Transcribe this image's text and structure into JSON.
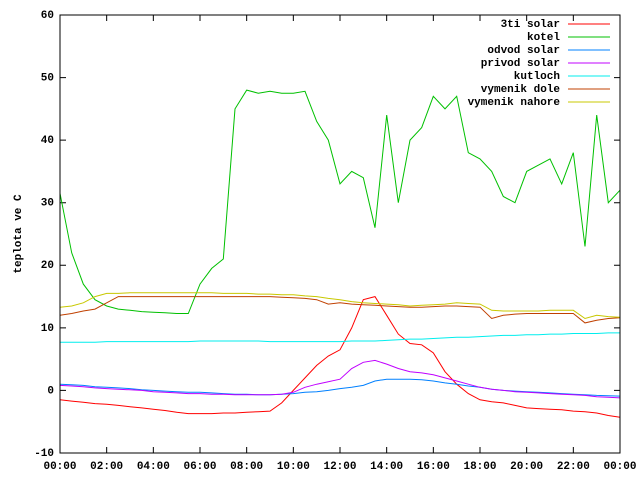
{
  "chart_data": {
    "type": "line",
    "y_label": "teplota ve C",
    "x": [
      0,
      0.5,
      1,
      1.5,
      2,
      2.5,
      3,
      3.5,
      4,
      4.5,
      5,
      5.5,
      6,
      6.5,
      7,
      7.5,
      8,
      8.5,
      9,
      9.5,
      10,
      10.5,
      11,
      11.5,
      12,
      12.5,
      13,
      13.5,
      14,
      14.5,
      15,
      15.5,
      16,
      16.5,
      17,
      17.5,
      18,
      18.5,
      19,
      19.5,
      20,
      20.5,
      21,
      21.5,
      22,
      22.5,
      23,
      23.5,
      24
    ],
    "xlim": [
      0,
      24
    ],
    "xticks": [
      {
        "value": 0,
        "label": "00:00"
      },
      {
        "value": 2,
        "label": "02:00"
      },
      {
        "value": 4,
        "label": "04:00"
      },
      {
        "value": 6,
        "label": "06:00"
      },
      {
        "value": 8,
        "label": "08:00"
      },
      {
        "value": 10,
        "label": "10:00"
      },
      {
        "value": 12,
        "label": "12:00"
      },
      {
        "value": 14,
        "label": "14:00"
      },
      {
        "value": 16,
        "label": "16:00"
      },
      {
        "value": 18,
        "label": "18:00"
      },
      {
        "value": 20,
        "label": "20:00"
      },
      {
        "value": 22,
        "label": "22:00"
      },
      {
        "value": 24,
        "label": "00:00"
      }
    ],
    "ylim": [
      -10,
      60
    ],
    "yticks": [
      -10,
      0,
      10,
      20,
      30,
      40,
      50,
      60
    ],
    "grid": false,
    "legend": "top right",
    "series": [
      {
        "name": "3ti solar",
        "color": "#ff0000",
        "values": [
          -1.5,
          -1.7,
          -1.9,
          -2.1,
          -2.2,
          -2.4,
          -2.6,
          -2.8,
          -3,
          -3.2,
          -3.5,
          -3.7,
          -3.7,
          -3.7,
          -3.6,
          -3.6,
          -3.5,
          -3.4,
          -3.3,
          -2,
          0,
          2,
          4,
          5.5,
          6.5,
          10,
          14.5,
          15,
          12,
          9,
          7.5,
          7.3,
          6,
          3,
          1,
          -0.5,
          -1.5,
          -1.8,
          -2,
          -2.4,
          -2.8,
          -2.9,
          -3,
          -3.1,
          -3.3,
          -3.4,
          -3.6,
          -4,
          -4.3
        ]
      },
      {
        "name": "kotel",
        "color": "#00c000",
        "values": [
          31.5,
          22,
          17,
          14.5,
          13.5,
          13,
          12.8,
          12.6,
          12.5,
          12.4,
          12.3,
          12.3,
          17,
          19.5,
          21,
          45,
          48,
          47.5,
          47.8,
          47.5,
          47.5,
          47.8,
          43,
          40,
          33,
          35,
          34,
          26,
          44,
          30,
          40,
          42,
          47,
          45,
          47,
          38,
          37,
          35,
          31,
          30,
          35,
          36,
          37,
          33,
          38,
          23,
          44,
          30,
          32
        ]
      },
      {
        "name": "odvod solar",
        "color": "#0080ff",
        "values": [
          1,
          0.9,
          0.8,
          0.6,
          0.5,
          0.4,
          0.3,
          0.1,
          0,
          -0.1,
          -0.2,
          -0.3,
          -0.3,
          -0.4,
          -0.5,
          -0.6,
          -0.6,
          -0.7,
          -0.7,
          -0.6,
          -0.5,
          -0.3,
          -0.2,
          0,
          0.3,
          0.5,
          0.8,
          1.5,
          1.8,
          1.8,
          1.8,
          1.7,
          1.5,
          1.2,
          1,
          0.7,
          0.5,
          0.2,
          0,
          -0.1,
          -0.2,
          -0.3,
          -0.4,
          -0.5,
          -0.6,
          -0.7,
          -0.8,
          -0.85,
          -0.9
        ]
      },
      {
        "name": "privod solar",
        "color": "#c000ff",
        "values": [
          0.8,
          0.7,
          0.6,
          0.4,
          0.3,
          0.2,
          0.1,
          0,
          -0.2,
          -0.3,
          -0.4,
          -0.5,
          -0.5,
          -0.6,
          -0.6,
          -0.7,
          -0.7,
          -0.7,
          -0.7,
          -0.6,
          -0.3,
          0.5,
          1,
          1.4,
          1.8,
          3.5,
          4.5,
          4.8,
          4.2,
          3.5,
          3,
          2.8,
          2.5,
          2,
          1.5,
          1,
          0.5,
          0.2,
          0,
          -0.2,
          -0.3,
          -0.4,
          -0.5,
          -0.6,
          -0.7,
          -0.8,
          -1,
          -1.1,
          -1.2
        ]
      },
      {
        "name": "kutloch",
        "color": "#00eeee",
        "values": [
          7.7,
          7.7,
          7.7,
          7.7,
          7.8,
          7.8,
          7.8,
          7.8,
          7.8,
          7.8,
          7.8,
          7.8,
          7.9,
          7.9,
          7.9,
          7.9,
          7.9,
          7.9,
          7.8,
          7.8,
          7.8,
          7.8,
          7.8,
          7.8,
          7.8,
          7.9,
          7.9,
          7.9,
          8,
          8.1,
          8.2,
          8.2,
          8.3,
          8.4,
          8.5,
          8.5,
          8.6,
          8.7,
          8.8,
          8.8,
          8.9,
          8.9,
          9,
          9,
          9.1,
          9.1,
          9.1,
          9.2,
          9.2
        ]
      },
      {
        "name": "vymenik dole",
        "color": "#c04000",
        "values": [
          12,
          12.3,
          12.7,
          13,
          14,
          15,
          15,
          15,
          15,
          15,
          15,
          15,
          15,
          15,
          15,
          15,
          15,
          15,
          15,
          14.9,
          14.8,
          14.7,
          14.5,
          13.8,
          14,
          13.8,
          13.7,
          13.6,
          13.5,
          13.4,
          13.3,
          13.3,
          13.4,
          13.5,
          13.5,
          13.4,
          13.3,
          11.5,
          12,
          12.2,
          12.3,
          12.3,
          12.3,
          12.3,
          12.3,
          10.8,
          11.2,
          11.5,
          11.6
        ]
      },
      {
        "name": "vymenik nahore",
        "color": "#c8c800",
        "values": [
          13.3,
          13.5,
          14,
          15,
          15.5,
          15.5,
          15.6,
          15.6,
          15.6,
          15.6,
          15.6,
          15.6,
          15.6,
          15.6,
          15.5,
          15.5,
          15.5,
          15.4,
          15.4,
          15.3,
          15.3,
          15.1,
          15,
          14.7,
          14.5,
          14.2,
          14,
          13.9,
          13.8,
          13.7,
          13.5,
          13.6,
          13.7,
          13.8,
          14,
          13.9,
          13.8,
          12.8,
          12.7,
          12.7,
          12.7,
          12.7,
          12.8,
          12.8,
          12.8,
          11.5,
          12,
          11.8,
          11.7
        ]
      }
    ]
  }
}
